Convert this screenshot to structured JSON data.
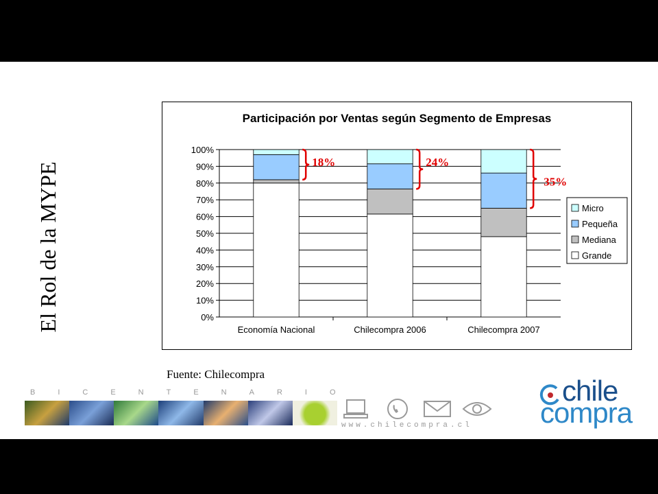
{
  "slide": {
    "vertical_title": "El Rol de la MYPE",
    "source": "Fuente: Chilecompra",
    "bicentenario": "BICENTENARIO",
    "website": "www.chilecompra.cl",
    "logo": {
      "line1": "chile",
      "line2": "compra"
    }
  },
  "chart_data": {
    "type": "bar",
    "stacked": true,
    "title": "Participación por Ventas según Segmento de Empresas",
    "categories": [
      "Economía Nacional",
      "Chilecompra 2006",
      "Chilecompra 2007"
    ],
    "ylim": [
      0,
      100
    ],
    "yticks": [
      "0%",
      "10%",
      "20%",
      "30%",
      "40%",
      "50%",
      "60%",
      "70%",
      "80%",
      "90%",
      "100%"
    ],
    "grid": true,
    "legend_position": "right",
    "series": [
      {
        "name": "Grande",
        "color": "#ffffff",
        "values": [
          80,
          61.5,
          48
        ]
      },
      {
        "name": "Mediana",
        "color": "#c0c0c0",
        "values": [
          2,
          15,
          17
        ]
      },
      {
        "name": "Pequeña",
        "color": "#99ccff",
        "values": [
          15,
          15,
          21
        ]
      },
      {
        "name": "Micro",
        "color": "#ccffff",
        "values": [
          3,
          8.5,
          14
        ]
      }
    ],
    "annotations": [
      "18%",
      "24%",
      "35%"
    ],
    "annotation_color": "#e00000"
  }
}
